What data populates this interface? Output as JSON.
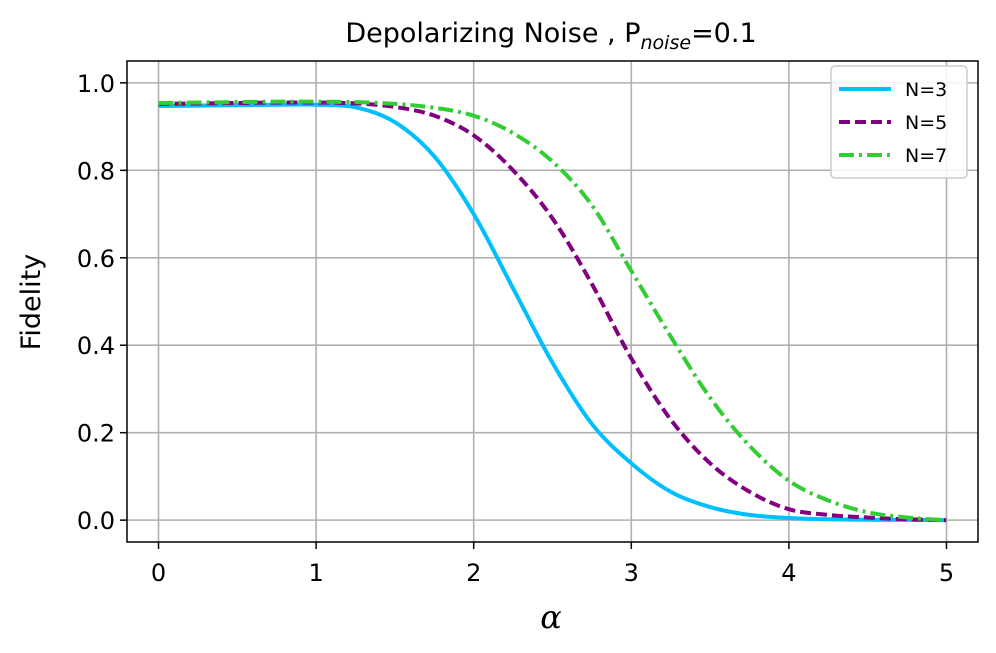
{
  "chart_data": {
    "type": "line",
    "title": "Depolarizing Noise , P",
    "title_subscript": "noise",
    "title_suffix": "=0.1",
    "xlabel": "α",
    "ylabel": "Fidelity",
    "xlim": [
      -0.2,
      5.2
    ],
    "ylim": [
      -0.05,
      1.05
    ],
    "xticks": [
      0,
      1,
      2,
      3,
      4,
      5
    ],
    "yticks": [
      0.0,
      0.2,
      0.4,
      0.6,
      0.8,
      1.0
    ],
    "xtick_labels": [
      "0",
      "1",
      "2",
      "3",
      "4",
      "5"
    ],
    "ytick_labels": [
      "0.0",
      "0.2",
      "0.4",
      "0.6",
      "0.8",
      "1.0"
    ],
    "grid": true,
    "legend_position": "top-right",
    "x": [
      0,
      0.25,
      0.5,
      0.75,
      1.0,
      1.25,
      1.5,
      1.75,
      2.0,
      2.25,
      2.5,
      2.75,
      3.0,
      3.25,
      3.5,
      3.75,
      4.0,
      4.25,
      4.5,
      4.75,
      5.0
    ],
    "series": [
      {
        "name": "N=3",
        "color": "#00bfff",
        "dash": "solid",
        "values": [
          0.947,
          0.948,
          0.949,
          0.95,
          0.95,
          0.944,
          0.91,
          0.832,
          0.7,
          0.53,
          0.36,
          0.22,
          0.13,
          0.065,
          0.03,
          0.012,
          0.005,
          0.002,
          0.001,
          0.0005,
          0.0
        ]
      },
      {
        "name": "N=5",
        "color": "#800080",
        "dash": "dashed",
        "values": [
          0.952,
          0.953,
          0.954,
          0.955,
          0.955,
          0.953,
          0.945,
          0.925,
          0.88,
          0.8,
          0.69,
          0.54,
          0.37,
          0.23,
          0.13,
          0.065,
          0.025,
          0.012,
          0.006,
          0.002,
          0.0
        ]
      },
      {
        "name": "N=7",
        "color": "#32cd32",
        "dash": "dashdot",
        "values": [
          0.954,
          0.955,
          0.956,
          0.957,
          0.957,
          0.956,
          0.952,
          0.943,
          0.925,
          0.885,
          0.82,
          0.72,
          0.57,
          0.42,
          0.28,
          0.17,
          0.09,
          0.045,
          0.018,
          0.006,
          0.0
        ]
      }
    ]
  }
}
